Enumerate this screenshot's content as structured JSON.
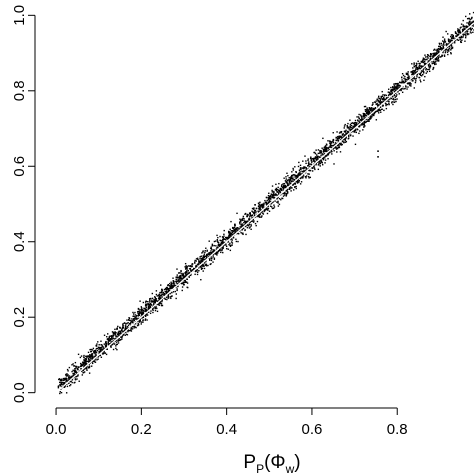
{
  "chart_data": {
    "type": "scatter",
    "title": "",
    "xlabel": {
      "base": "P",
      "sub": "P",
      "open": "(",
      "symbol": "Φ",
      "symbol_sub": "w",
      "close": ")"
    },
    "ylabel": "",
    "xlim": [
      -0.04,
      0.98
    ],
    "ylim": [
      -0.03,
      1.03
    ],
    "x_ticks": [
      "0.0",
      "0.2",
      "0.4",
      "0.6",
      "0.8"
    ],
    "y_ticks": [
      "0.0",
      "0.2",
      "0.4",
      "0.6",
      "0.8",
      "1.0"
    ],
    "grid": false,
    "legend": "none",
    "series": [
      {
        "role": "points",
        "color": "#000000",
        "trend": {
          "slope": 0.995,
          "intercept": 0.008
        },
        "x_range": [
          0.005,
          0.98
        ],
        "scatter_sd": 0.012,
        "outliers": [
          {
            "x": 0.755,
            "y": 0.64
          },
          {
            "x": 0.755,
            "y": 0.625
          }
        ]
      },
      {
        "role": "identity-line",
        "color": "#ffffff",
        "x": [
          0.0,
          0.98
        ],
        "y": [
          0.0,
          0.98
        ]
      }
    ],
    "axis_color": "#000000",
    "background": "#ffffff"
  }
}
